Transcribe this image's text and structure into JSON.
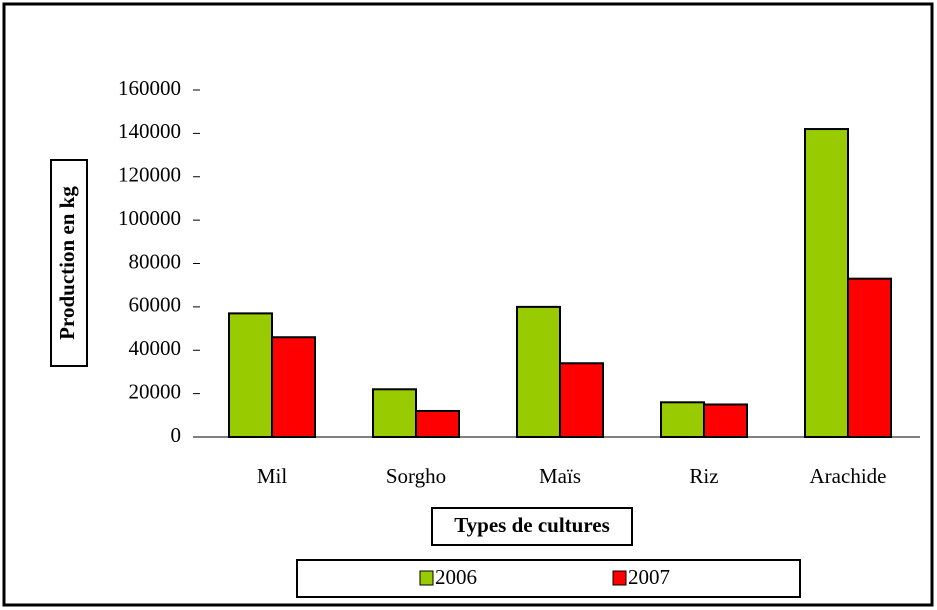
{
  "chart_data": {
    "type": "bar",
    "categories": [
      "Mil",
      "Sorgho",
      "Maïs",
      "Riz",
      "Arachide"
    ],
    "series": [
      {
        "name": "2006",
        "color": "#99cc00",
        "values": [
          57000,
          22000,
          60000,
          16000,
          142000
        ]
      },
      {
        "name": "2007",
        "color": "#ff0000",
        "values": [
          46000,
          12000,
          34000,
          15000,
          73000
        ]
      }
    ],
    "y_label": "Production en kg",
    "x_label": "Types de cultures",
    "ylim": [
      0,
      160000
    ],
    "yticks": [
      0,
      20000,
      40000,
      60000,
      80000,
      100000,
      120000,
      140000,
      160000
    ],
    "legend": "bottom"
  }
}
